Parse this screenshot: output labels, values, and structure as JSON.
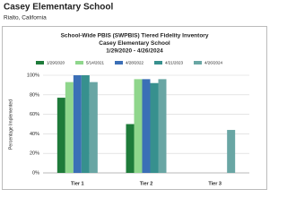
{
  "header": {
    "title": "Casey Elementary School",
    "subtitle": "Rialto, California"
  },
  "chart_data": {
    "type": "bar",
    "title": "School-Wide PBIS (SWPBIS) Tiered Fidelity Inventory",
    "subtitle": "Casey Elementary School",
    "date_range": "1/29/2020 - 4/26/2024",
    "y_label": "Percentage Implemented",
    "categories": [
      "Tier 1",
      "Tier 2",
      "Tier 3"
    ],
    "series": [
      {
        "name": "1/29/2020",
        "color": "#1e7b3a",
        "values": [
          77,
          50,
          null
        ]
      },
      {
        "name": "5/14/2021",
        "color": "#8fd68c",
        "values": [
          93,
          96,
          null
        ]
      },
      {
        "name": "4/28/2022",
        "color": "#3b6fb6",
        "values": [
          100,
          96,
          null
        ]
      },
      {
        "name": "4/21/2023",
        "color": "#37908e",
        "values": [
          100,
          92,
          null
        ]
      },
      {
        "name": "4/26/2024",
        "color": "#69a6a4",
        "values": [
          93,
          96,
          44
        ]
      }
    ],
    "ylim": [
      0,
      100
    ],
    "yticks": [
      {
        "value": 0,
        "label": "0%"
      },
      {
        "value": 20,
        "label": "20%"
      },
      {
        "value": 40,
        "label": "40%"
      },
      {
        "value": 60,
        "label": "60%"
      },
      {
        "value": 80,
        "label": "80%"
      },
      {
        "value": 100,
        "label": "100%"
      }
    ],
    "grid": true
  }
}
